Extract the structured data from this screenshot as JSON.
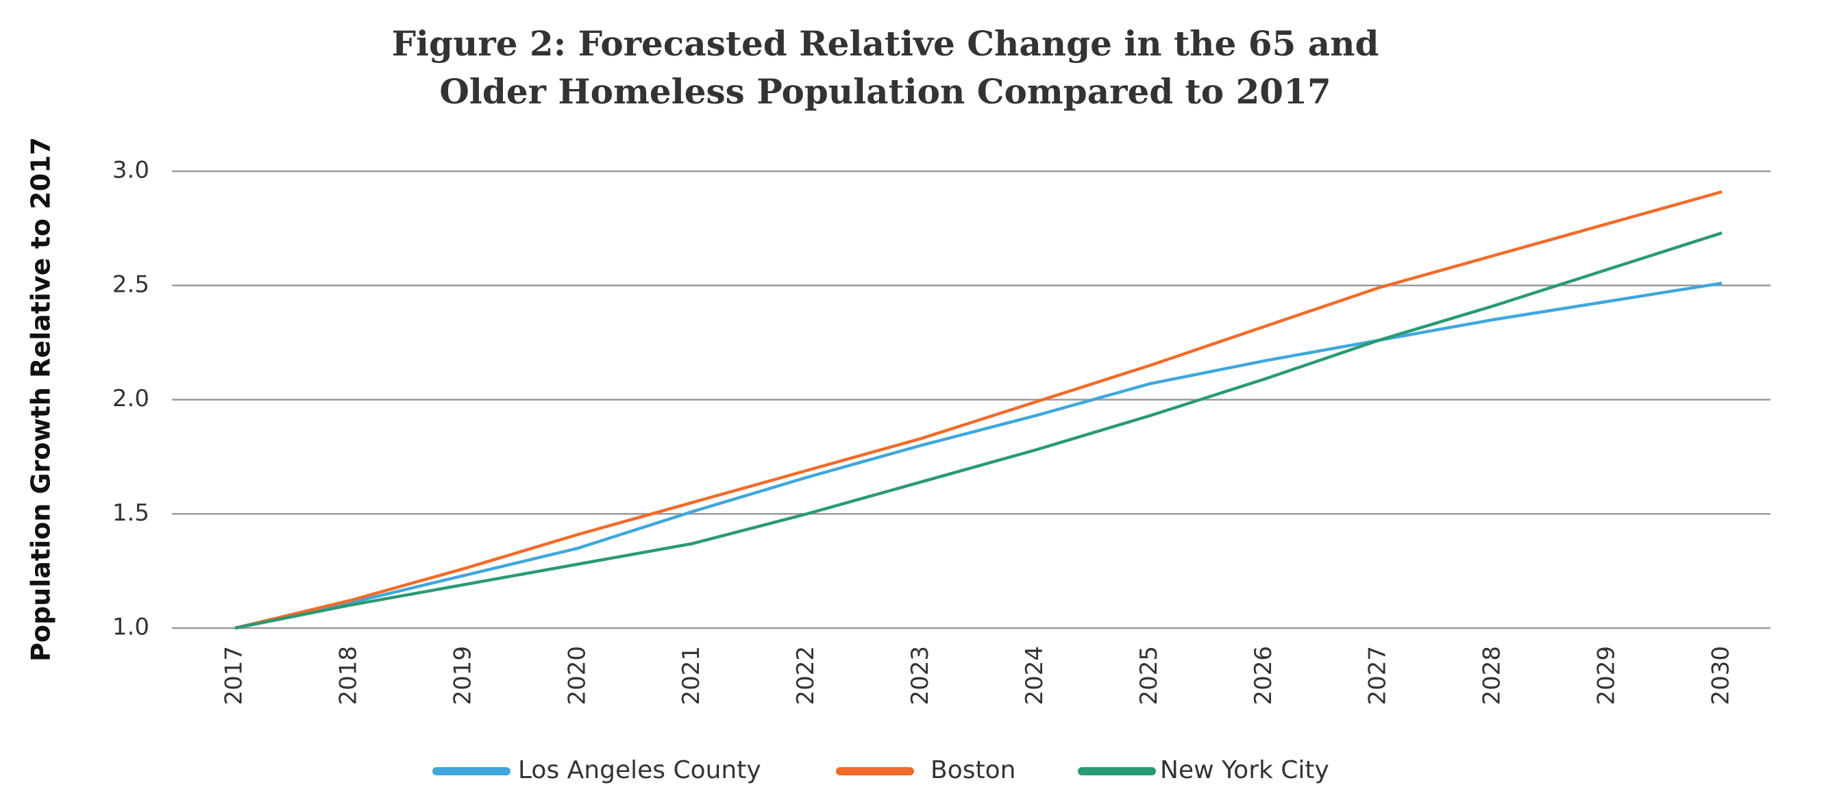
{
  "chart_data": {
    "type": "line",
    "title": [
      "Figure 2: Forecasted Relative Change in the 65 and",
      "Older Homeless Population Compared to 2017"
    ],
    "y_label": "Population Growth Relative to 2017",
    "categories": [
      "2017",
      "2018",
      "2019",
      "2020",
      "2021",
      "2022",
      "2023",
      "2024",
      "2025",
      "2026",
      "2027",
      "2028",
      "2029",
      "2030"
    ],
    "series": [
      {
        "name": "Los Angeles County",
        "color": "#3fa7dc",
        "values": [
          1.0,
          1.11,
          1.23,
          1.35,
          1.51,
          1.66,
          1.8,
          1.93,
          2.07,
          2.17,
          2.26,
          2.35,
          2.43,
          2.51
        ]
      },
      {
        "name": "Boston",
        "color": "#f26b2a",
        "values": [
          1.0,
          1.12,
          1.26,
          1.41,
          1.55,
          1.69,
          1.83,
          1.99,
          2.15,
          2.32,
          2.49,
          2.63,
          2.77,
          2.91
        ]
      },
      {
        "name": "New York City",
        "color": "#2a9a72",
        "values": [
          1.0,
          1.1,
          1.19,
          1.28,
          1.37,
          1.5,
          1.64,
          1.78,
          1.93,
          2.09,
          2.26,
          2.41,
          2.57,
          2.73
        ]
      }
    ],
    "ylim": [
      1.0,
      3.0
    ],
    "yticks": [
      {
        "value": 1,
        "label": "1.0"
      },
      1.5,
      {
        "value": 2,
        "label": "2.0"
      },
      2.5,
      {
        "value": 3,
        "label": "3.0"
      }
    ],
    "grid": true,
    "legend": "bottom"
  }
}
